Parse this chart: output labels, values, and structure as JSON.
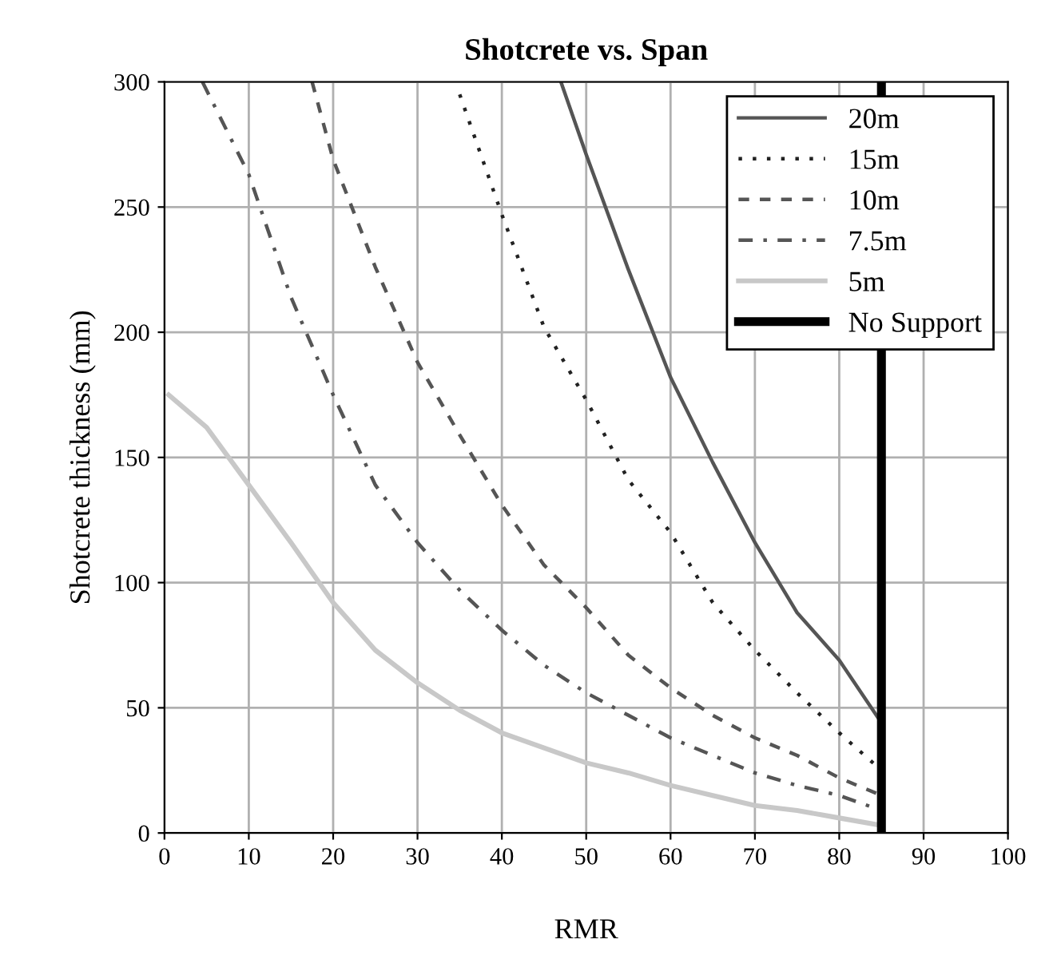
{
  "chart_data": {
    "type": "line",
    "title": "Shotcrete vs. Span",
    "xlabel": "RMR",
    "ylabel": "Shotcrete thickness (mm)",
    "xlim": [
      0,
      100
    ],
    "ylim": [
      0,
      300
    ],
    "xticks": [
      0,
      10,
      20,
      30,
      40,
      50,
      60,
      70,
      80,
      90,
      100
    ],
    "yticks": [
      0,
      50,
      100,
      150,
      200,
      250,
      300
    ],
    "grid": true,
    "legend": "top right",
    "marker": "none",
    "series": [
      {
        "name": "20m",
        "color": "#555555",
        "line_style": "solid",
        "x": [
          47,
          50,
          55,
          60,
          65,
          70,
          75,
          80,
          85
        ],
        "values": [
          300,
          271,
          225,
          182,
          148,
          116,
          88,
          69,
          44
        ]
      },
      {
        "name": "15m",
        "color": "#222222",
        "line_style": "dotted",
        "x": [
          35,
          40,
          45,
          50,
          55,
          60,
          65,
          70,
          75,
          80,
          85
        ],
        "values": [
          295,
          247,
          202,
          173,
          141,
          120,
          92,
          73,
          56,
          40,
          25
        ]
      },
      {
        "name": "10m",
        "color": "#555555",
        "line_style": "dashed",
        "x": [
          17.5,
          20,
          25,
          30,
          35,
          40,
          45,
          50,
          55,
          60,
          65,
          70,
          75,
          80,
          85
        ],
        "values": [
          300,
          269,
          226,
          188,
          159,
          131,
          107,
          90,
          71,
          58,
          47,
          38,
          31,
          22,
          15
        ]
      },
      {
        "name": "7.5m",
        "color": "#555555",
        "line_style": "dashdot",
        "x": [
          4.5,
          10,
          15,
          20,
          25,
          30,
          35,
          40,
          45,
          50,
          55,
          60,
          65,
          70,
          75,
          80,
          85
        ],
        "values": [
          300,
          263,
          214,
          175,
          139,
          116,
          97,
          81,
          67,
          56,
          47,
          38,
          31,
          24,
          19,
          15,
          9
        ]
      },
      {
        "name": "5m",
        "color": "#c8c8c8",
        "line_style": "solid",
        "x": [
          0.5,
          5,
          10,
          15,
          20,
          25,
          30,
          35,
          40,
          45,
          50,
          55,
          60,
          65,
          70,
          75,
          80,
          85
        ],
        "values": [
          175,
          162,
          139,
          116,
          92,
          73,
          60,
          49,
          40,
          34,
          28,
          24,
          19,
          15,
          11,
          9,
          6,
          3
        ]
      }
    ],
    "ref_lines": [
      {
        "axis": "x",
        "value": 85,
        "label": "No Support",
        "color": "#000000",
        "line_style": "solid"
      }
    ]
  }
}
